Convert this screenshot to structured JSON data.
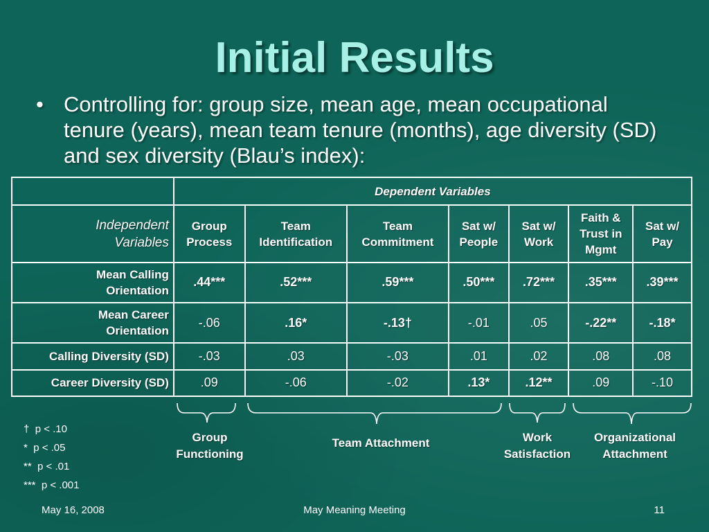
{
  "slide": {
    "title": "Initial Results",
    "bullet": "Controlling for: group size, mean age, mean occupational tenure (years), mean team tenure (months), age diversity (SD) and sex diversity (Blau’s index):"
  },
  "table": {
    "dependent_header": "Dependent Variables",
    "independent_header_line1": "Independent",
    "independent_header_line2": "Variables",
    "columns": [
      [
        "Group",
        "Process"
      ],
      [
        "Team",
        "Identification"
      ],
      [
        "Team",
        "Commitment"
      ],
      [
        "Sat w/",
        "People"
      ],
      [
        "Sat w/",
        "Work"
      ],
      [
        "Faith &",
        "Trust in",
        "Mgmt"
      ],
      [
        "Sat w/",
        "Pay"
      ]
    ],
    "rows": [
      {
        "label": [
          "Mean Calling",
          "Orientation"
        ],
        "values": [
          ".44***",
          ".52***",
          ".59***",
          ".50***",
          ".72***",
          ".35***",
          ".39***"
        ],
        "bold": [
          true,
          true,
          true,
          true,
          true,
          true,
          true
        ]
      },
      {
        "label": [
          "Mean Career",
          "Orientation"
        ],
        "values": [
          "-.06",
          ".16*",
          "-.13†",
          "-.01",
          ".05",
          "-.22**",
          "-.18*"
        ],
        "bold": [
          false,
          true,
          true,
          false,
          false,
          true,
          true
        ]
      },
      {
        "label": [
          "Calling Diversity (SD)"
        ],
        "values": [
          "-.03",
          ".03",
          "-.03",
          ".01",
          ".02",
          ".08",
          ".08"
        ],
        "bold": [
          false,
          false,
          false,
          false,
          false,
          false,
          false
        ]
      },
      {
        "label": [
          "Career Diversity (SD)"
        ],
        "values": [
          ".09",
          "-.06",
          "-.02",
          ".13*",
          ".12**",
          ".09",
          "-.10"
        ],
        "bold": [
          false,
          false,
          false,
          true,
          true,
          false,
          false
        ]
      }
    ]
  },
  "groups": {
    "group_functioning": [
      "Group",
      "Functioning"
    ],
    "team_attachment": "Team Attachment",
    "work_satisfaction": [
      "Work",
      "Satisfaction"
    ],
    "organizational_attachment": [
      "Organizational",
      "Attachment"
    ]
  },
  "footnotes": [
    {
      "symbol": "†",
      "text": "p < .10"
    },
    {
      "symbol": "*",
      "text": "p < .05"
    },
    {
      "symbol": "**",
      "text": "p < .01"
    },
    {
      "symbol": "***",
      "text": "p < .001"
    }
  ],
  "footer": {
    "date": "May 16, 2008",
    "event": "May Meaning Meeting",
    "page": "11"
  },
  "colors": {
    "background": "#0e6458",
    "title": "#a6f0e6",
    "text": "#ffffff"
  }
}
